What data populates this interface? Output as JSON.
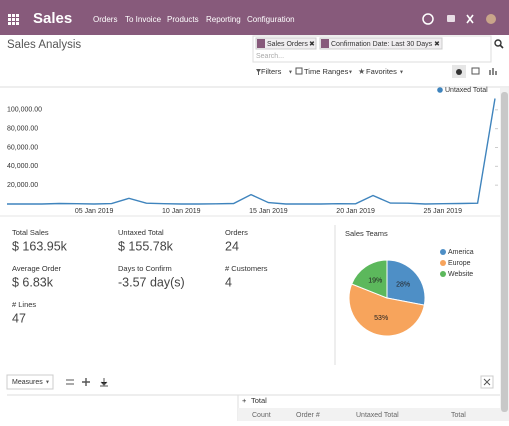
{
  "nav": {
    "app": "Sales",
    "menu": [
      "Orders",
      "To Invoice",
      "Products",
      "Reporting",
      "Configuration"
    ]
  },
  "control": {
    "title": "Sales Analysis",
    "facets": [
      "Sales Orders",
      "Confirmation Date: Last 30 Days"
    ],
    "search_placeholder": "Search...",
    "buttons": [
      "Filters",
      "Time Ranges",
      "Favorites"
    ]
  },
  "chart_data": [
    {
      "type": "line",
      "legend": "top-right",
      "grid": false,
      "categories": [
        null,
        null,
        null,
        null,
        null,
        "05 Jan 2019",
        null,
        null,
        null,
        null,
        "10 Jan 2019",
        null,
        null,
        null,
        null,
        "15 Jan 2019",
        null,
        null,
        null,
        null,
        "20 Jan 2019",
        null,
        null,
        null,
        null,
        "25 Jan 2019",
        null,
        null,
        null
      ],
      "series": [
        {
          "name": "Untaxed Total",
          "color": "#3f84bd",
          "values": [
            0,
            0,
            0,
            500,
            300,
            0,
            400,
            6000,
            800,
            300,
            0,
            0,
            200,
            500,
            10000,
            1500,
            0,
            0,
            0,
            300,
            200,
            9000,
            1000,
            800,
            0,
            300,
            500,
            800,
            112000
          ]
        }
      ],
      "ylim": [
        0,
        120000
      ],
      "yticks": [
        {
          "value": 20000,
          "label": "20,000.00"
        },
        {
          "value": 40000,
          "label": "40,000.00"
        },
        {
          "value": 60000,
          "label": "60,000.00"
        },
        {
          "value": 80000,
          "label": "80,000.00"
        },
        {
          "value": 100000,
          "label": "100,000.00"
        }
      ]
    },
    {
      "type": "pie",
      "title": "Sales Teams",
      "legend": "top-right",
      "categories": [
        "America",
        "Europe",
        "Website"
      ],
      "values": [
        28,
        53,
        19
      ],
      "value_labels": [
        "28%",
        "53%",
        "19%"
      ],
      "colors": [
        "#4e8fc6",
        "#f7a45c",
        "#5cb85c"
      ]
    }
  ],
  "kpis": [
    {
      "label": "Total Sales",
      "value": "$ 163.95k"
    },
    {
      "label": "Untaxed Total",
      "value": "$ 155.78k"
    },
    {
      "label": "Orders",
      "value": "24"
    },
    {
      "label": "Average Order",
      "value": "$ 6.83k"
    },
    {
      "label": "Days to Confirm",
      "value": "-3.57 day(s)"
    },
    {
      "label": "# Customers",
      "value": "4"
    },
    {
      "label": "# Lines",
      "value": "47"
    }
  ],
  "pivot": {
    "measures": "Measures",
    "row_header": "Total",
    "columns": [
      "Count",
      "Order #",
      "Untaxed Total",
      "Total"
    ]
  }
}
